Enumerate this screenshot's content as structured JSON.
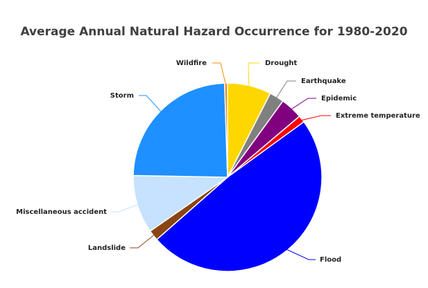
{
  "chart_data": {
    "type": "pie",
    "title": "Average Annual Natural Hazard Occurrence for 1980-2020",
    "slices": [
      {
        "label": "Drought",
        "value": 7.5,
        "color": "#FFD700"
      },
      {
        "label": "Earthquake",
        "value": 2.5,
        "color": "#808080"
      },
      {
        "label": "Epidemic",
        "value": 3.8,
        "color": "#800080"
      },
      {
        "label": "Extreme temperature",
        "value": 1.2,
        "color": "#FF0000"
      },
      {
        "label": "Flood",
        "value": 48.5,
        "color": "#0000FF"
      },
      {
        "label": "Landslide",
        "value": 1.8,
        "color": "#8B4513"
      },
      {
        "label": "Miscellaneous accident",
        "value": 10.0,
        "color": "#C6E2FF"
      },
      {
        "label": "Storm",
        "value": 24.2,
        "color": "#1E90FF"
      },
      {
        "label": "Wildfire",
        "value": 0.5,
        "color": "#FF8C00"
      }
    ],
    "legend": "none"
  }
}
